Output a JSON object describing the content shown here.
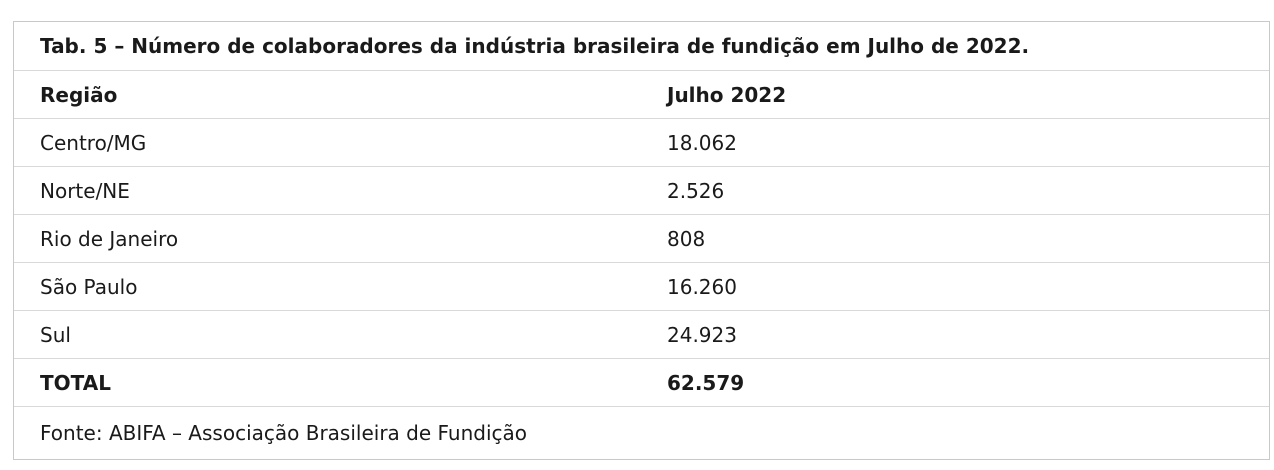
{
  "table": {
    "title": "Tab. 5 – Número de colaboradores da indústria brasileira de fundição em Julho de 2022.",
    "headers": [
      "Região",
      "Julho 2022"
    ],
    "rows": [
      {
        "region": "Centro/MG",
        "value": "18.062"
      },
      {
        "region": "Norte/NE",
        "value": "2.526"
      },
      {
        "region": "Rio de Janeiro",
        "value": "808"
      },
      {
        "region": "São Paulo",
        "value": "16.260"
      },
      {
        "region": "Sul",
        "value": "24.923"
      }
    ],
    "total": {
      "label": "TOTAL",
      "value": "62.579"
    },
    "source": "Fonte: ABIFA – Associação Brasileira de Fundição"
  }
}
